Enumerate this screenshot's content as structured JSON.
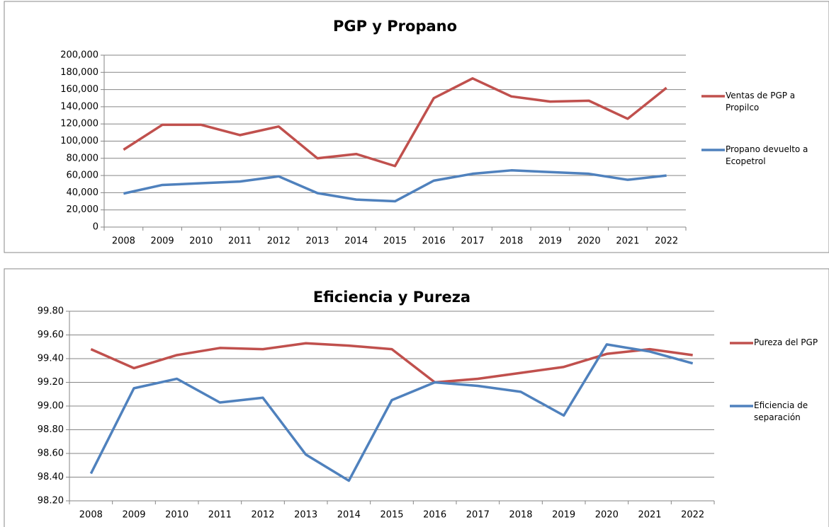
{
  "chart_data": [
    {
      "type": "line",
      "title": "PGP y Propano",
      "categories": [
        "2008",
        "2009",
        "2010",
        "2011",
        "2012",
        "2013",
        "2014",
        "2015",
        "2016",
        "2017",
        "2018",
        "2019",
        "2020",
        "2021",
        "2022"
      ],
      "series": [
        {
          "name": "Ventas de PGP a Propilco",
          "color": "#c0504d",
          "values": [
            90000,
            119000,
            119000,
            107000,
            117000,
            80000,
            85000,
            71000,
            150000,
            173000,
            152000,
            146000,
            147000,
            126000,
            162000
          ]
        },
        {
          "name": "Propano devuelto a Ecopetrol",
          "color": "#4f81bd",
          "values": [
            39000,
            49000,
            51000,
            53000,
            59000,
            39500,
            32000,
            30000,
            54000,
            62000,
            66000,
            64000,
            62000,
            55000,
            60000
          ]
        }
      ],
      "ylim": [
        0,
        200000
      ],
      "yticks": [
        0,
        {
          "value": 20000,
          "label": "20,000"
        },
        {
          "value": 40000,
          "label": "40,000"
        },
        {
          "value": 60000,
          "label": "60,000"
        },
        {
          "value": 80000,
          "label": "80,000"
        },
        {
          "value": 100000,
          "label": "100,000"
        },
        {
          "value": 120000,
          "label": "120,000"
        },
        {
          "value": 140000,
          "label": "140,000"
        },
        {
          "value": 160000,
          "label": "160,000"
        },
        {
          "value": 180000,
          "label": "180,000"
        },
        {
          "value": 200000,
          "label": "200,000"
        }
      ],
      "grid": true,
      "legend": "right"
    },
    {
      "type": "line",
      "title": "Eficiencia y Pureza",
      "categories": [
        "2008",
        "2009",
        "2010",
        "2011",
        "2012",
        "2013",
        "2014",
        "2015",
        "2016",
        "2017",
        "2018",
        "2019",
        "2020",
        "2021",
        "2022"
      ],
      "series": [
        {
          "name": "Pureza del PGP",
          "color": "#c0504d",
          "values": [
            99.48,
            99.32,
            99.43,
            99.49,
            99.48,
            99.53,
            99.51,
            99.48,
            99.2,
            99.23,
            99.28,
            99.33,
            99.44,
            99.48,
            99.43
          ]
        },
        {
          "name": "Eficiencia de separación",
          "color": "#4f81bd",
          "values": [
            98.43,
            99.15,
            99.23,
            99.03,
            99.07,
            98.59,
            98.37,
            99.05,
            99.2,
            99.17,
            99.12,
            98.92,
            99.52,
            99.46,
            99.36
          ]
        }
      ],
      "ylim": [
        98.2,
        99.8
      ],
      "yticks": [
        {
          "value": 98.2,
          "label": "98.20"
        },
        {
          "value": 98.4,
          "label": "98.40"
        },
        {
          "value": 98.6,
          "label": "98.60"
        },
        {
          "value": 98.8,
          "label": "98.80"
        },
        {
          "value": 99.0,
          "label": "99.00"
        },
        {
          "value": 99.2,
          "label": "99.20"
        },
        {
          "value": 99.4,
          "label": "99.40"
        },
        {
          "value": 99.6,
          "label": "99.60"
        },
        {
          "value": 99.8,
          "label": "99.80"
        }
      ],
      "grid": true,
      "legend": "right"
    }
  ]
}
